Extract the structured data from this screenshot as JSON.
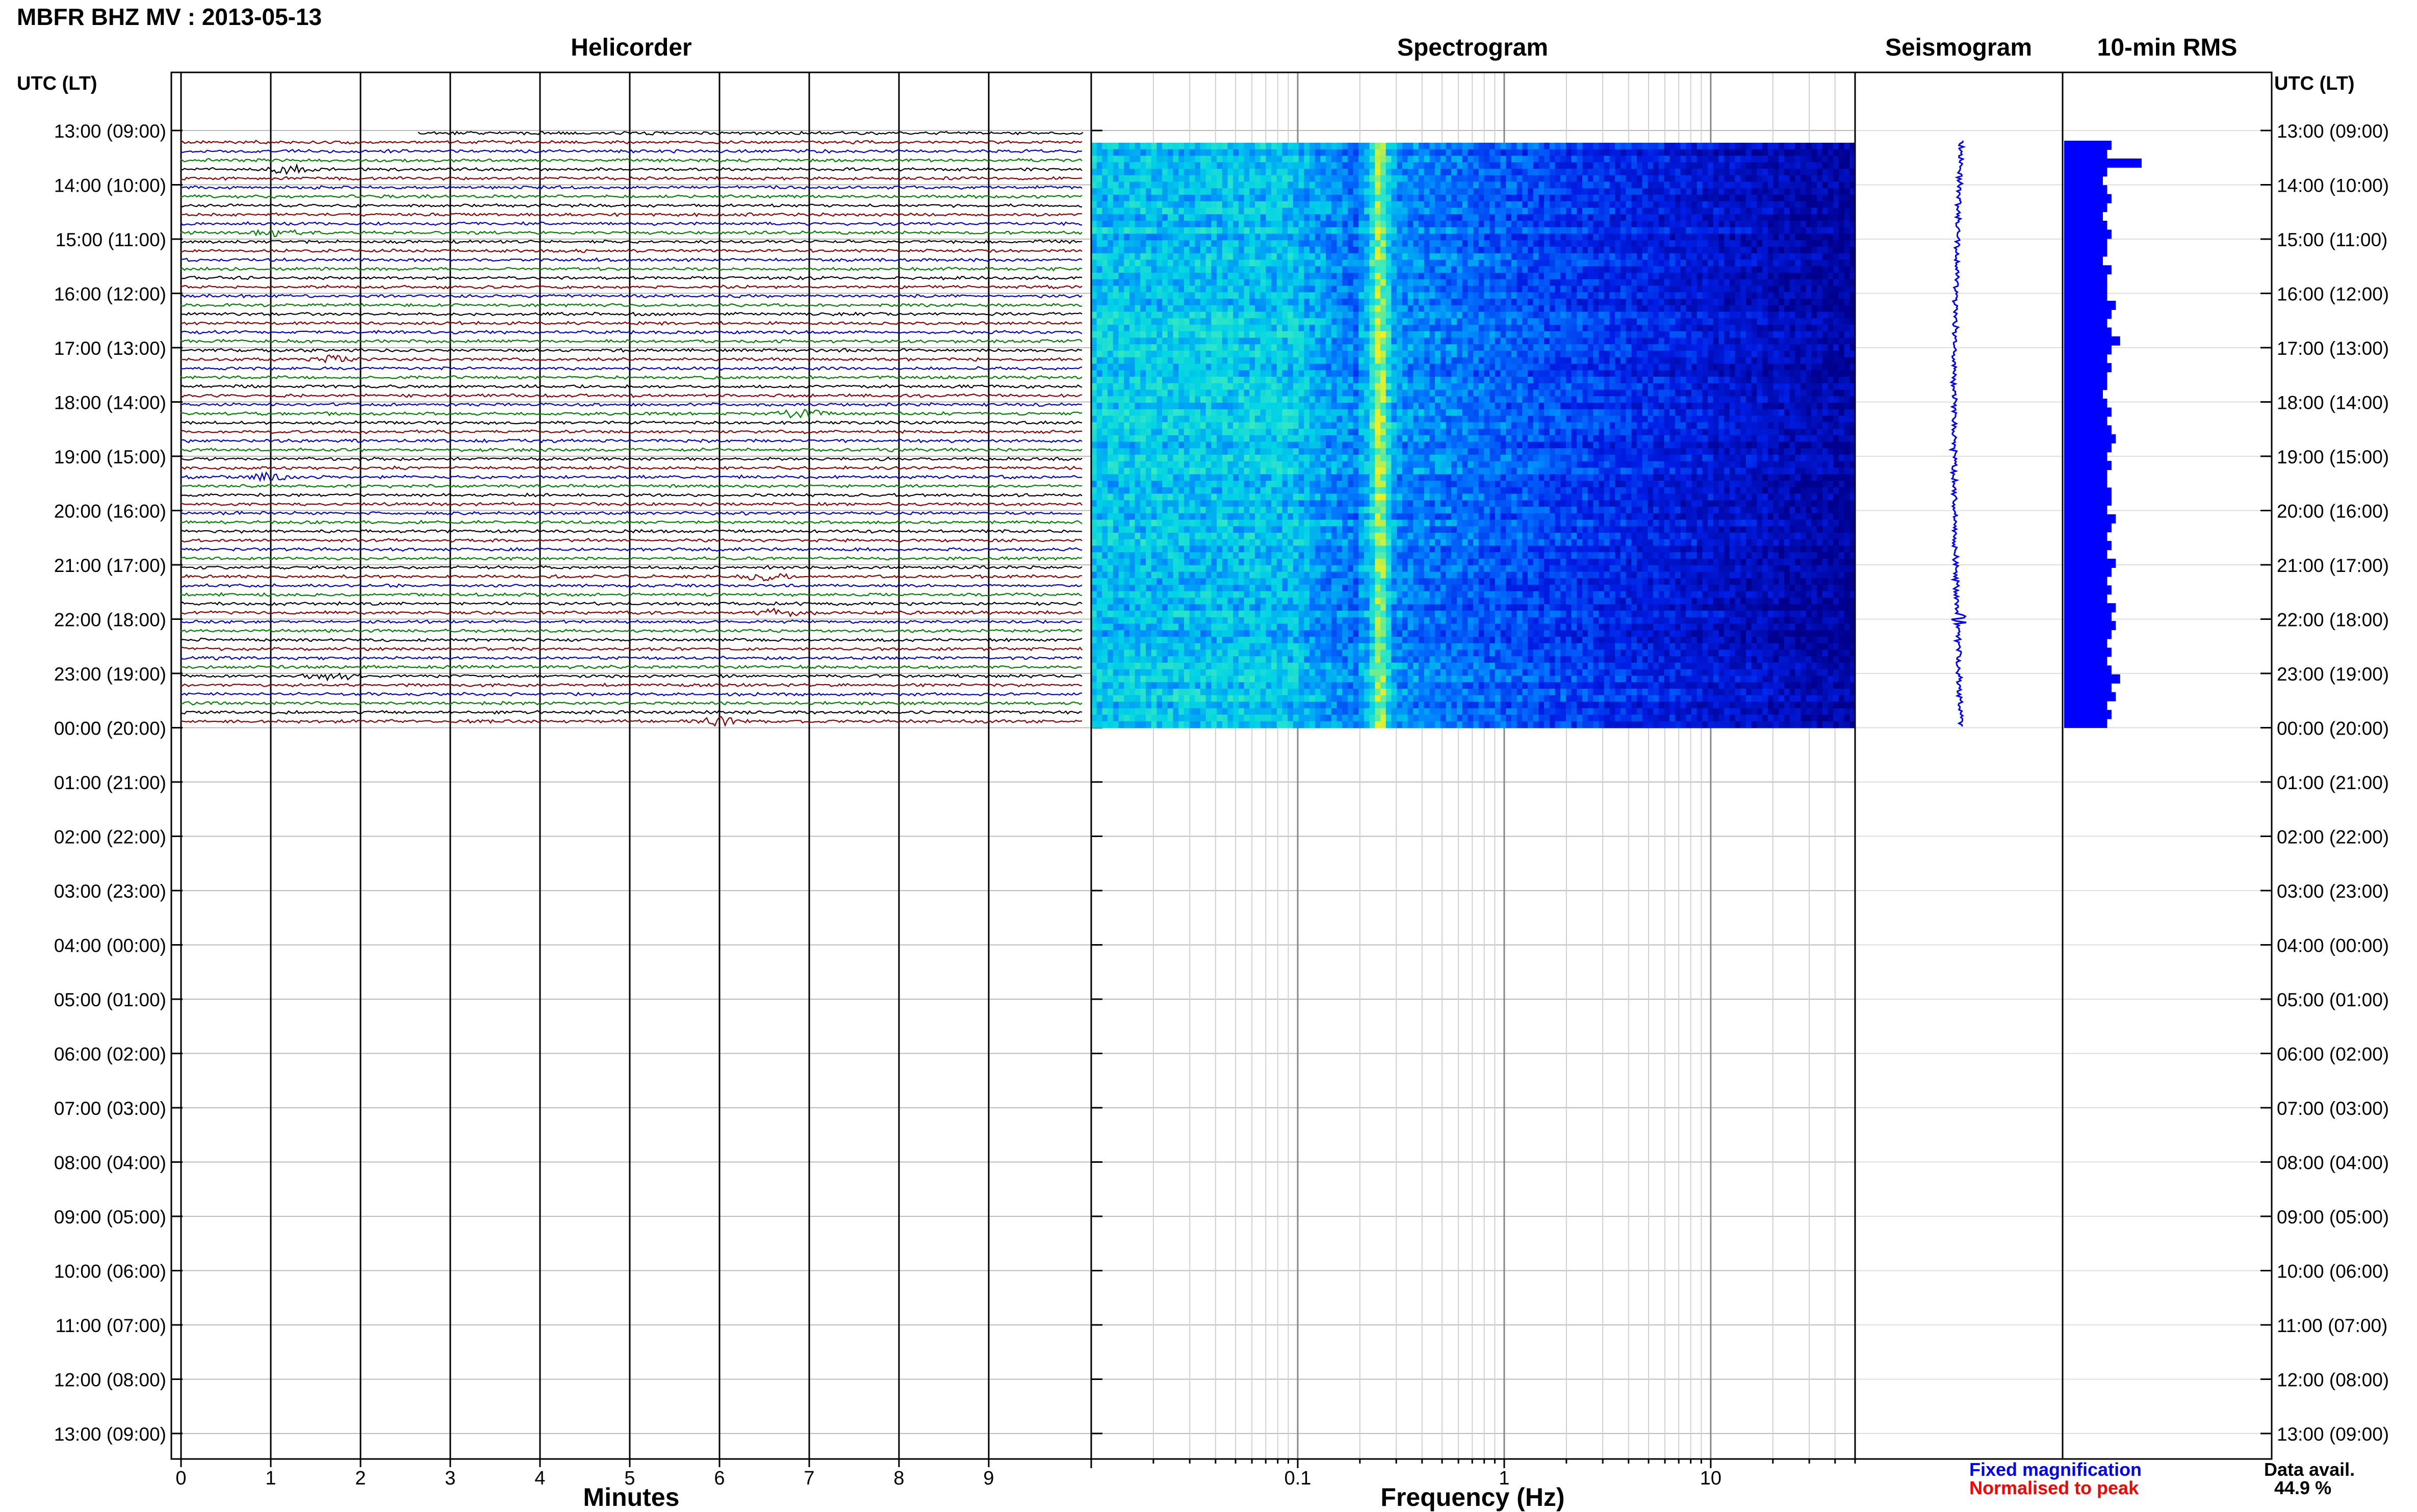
{
  "title": "MBFR BHZ MV : 2013-05-13",
  "panels": {
    "helicorder": "Helicorder",
    "spectrogram": "Spectrogram",
    "seismogram": "Seismogram",
    "rms": "10-min RMS"
  },
  "time_axis_header": "UTC (LT)",
  "legend": {
    "fixed": "Fixed magnification",
    "normalised": "Normalised to peak",
    "fixed_color": "#0000ff",
    "normalised_color": "#ff0000"
  },
  "data_avail": {
    "label": "Data avail.",
    "value": "44.9 %"
  },
  "trace_colors": [
    "#000000",
    "#8b0000",
    "#0000cd",
    "#008000"
  ],
  "chart_data": [
    {
      "type": "line",
      "panel": "Helicorder",
      "xlabel": "Minutes",
      "x_ticks": [
        "0",
        "1",
        "2",
        "3",
        "4",
        "5",
        "6",
        "7",
        "8",
        "9"
      ],
      "xlim": [
        0,
        10
      ],
      "y_ticks": [
        "13:00 (09:00)",
        "14:00 (10:00)",
        "15:00 (11:00)",
        "16:00 (12:00)",
        "17:00 (13:00)",
        "18:00 (14:00)",
        "19:00 (15:00)",
        "20:00 (16:00)",
        "21:00 (17:00)",
        "22:00 (18:00)",
        "23:00 (19:00)",
        "00:00 (20:00)",
        "01:00 (21:00)",
        "02:00 (22:00)",
        "03:00 (23:00)",
        "04:00 (00:00)",
        "05:00 (01:00)",
        "06:00 (02:00)",
        "07:00 (03:00)",
        "08:00 (04:00)",
        "09:00 (05:00)",
        "10:00 (06:00)",
        "11:00 (07:00)",
        "12:00 (08:00)",
        "13:00 (09:00)"
      ],
      "data_start_utc": "13:00",
      "data_end_utc": "00:00",
      "events": [
        {
          "time_utc": "13:40",
          "minute": 1.2
        },
        {
          "time_utc": "14:50",
          "minute": 1.1
        },
        {
          "time_utc": "17:10",
          "minute": 1.7
        },
        {
          "time_utc": "18:10",
          "minute": 6.9
        },
        {
          "time_utc": "19:20",
          "minute": 1.0
        },
        {
          "time_utc": "21:10",
          "minute": 6.5
        },
        {
          "time_utc": "21:50",
          "minute": 6.7
        },
        {
          "time_utc": "23:00",
          "minute": 1.7
        },
        {
          "time_utc": "23:50",
          "minute": 6.0
        }
      ]
    },
    {
      "type": "heatmap",
      "panel": "Spectrogram",
      "xlabel": "Frequency (Hz)",
      "x_scale": "log",
      "x_ticks": [
        "0.1",
        "1",
        "10"
      ],
      "xlim": [
        0.01,
        50
      ],
      "data_start_utc": "13:00",
      "data_end_utc": "00:00",
      "peak_frequency_hz": 0.25
    },
    {
      "type": "line",
      "panel": "Seismogram",
      "data_start_utc": "13:00",
      "data_end_utc": "00:00"
    },
    {
      "type": "bar",
      "panel": "10-min RMS",
      "data_start_utc": "13:00",
      "data_end_utc": "00:00",
      "relative_values": [
        0.55,
        0.5,
        0.9,
        0.5,
        0.45,
        0.5,
        0.55,
        0.5,
        0.45,
        0.5,
        0.55,
        0.5,
        0.5,
        0.45,
        0.55,
        0.5,
        0.5,
        0.5,
        0.6,
        0.55,
        0.5,
        0.55,
        0.65,
        0.55,
        0.5,
        0.55,
        0.5,
        0.5,
        0.45,
        0.5,
        0.55,
        0.5,
        0.55,
        0.6,
        0.55,
        0.5,
        0.55,
        0.5,
        0.5,
        0.55,
        0.55,
        0.5,
        0.6,
        0.55,
        0.5,
        0.55,
        0.5,
        0.6,
        0.55,
        0.5,
        0.55,
        0.5,
        0.6,
        0.55,
        0.6,
        0.55,
        0.5,
        0.55,
        0.5,
        0.55,
        0.65,
        0.55,
        0.6,
        0.5,
        0.55,
        0.5
      ]
    }
  ]
}
